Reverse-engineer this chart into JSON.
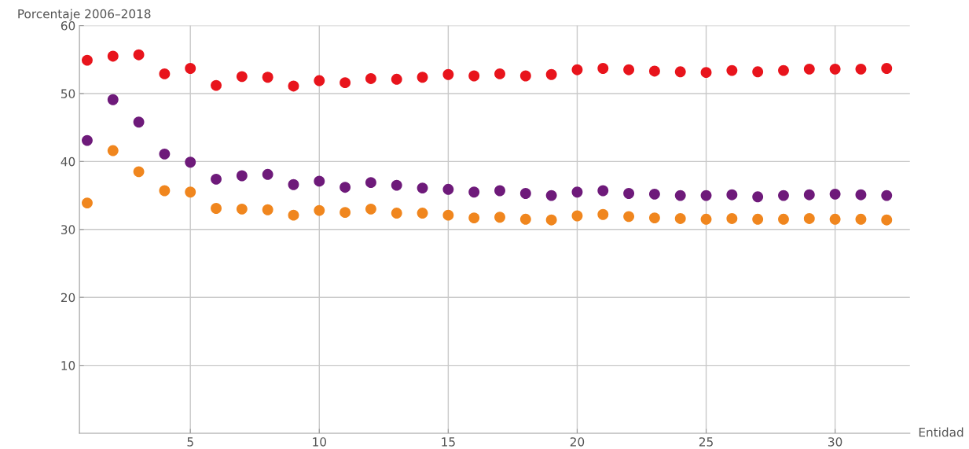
{
  "chart_data": {
    "type": "scatter",
    "xlabel": "Entidad",
    "ylabel": "Porcentaje 2006–2018",
    "x": [
      1,
      2,
      3,
      4,
      5,
      6,
      7,
      8,
      9,
      10,
      11,
      12,
      13,
      14,
      15,
      16,
      17,
      18,
      19,
      20,
      21,
      22,
      23,
      24,
      25,
      26,
      27,
      28,
      29,
      30,
      31,
      32
    ],
    "series": [
      {
        "color": "#e8141c",
        "values": [
          54.9,
          55.5,
          55.7,
          52.9,
          53.7,
          51.2,
          52.5,
          52.4,
          51.1,
          51.9,
          51.6,
          52.2,
          52.1,
          52.4,
          52.8,
          52.6,
          52.9,
          52.6,
          52.8,
          53.5,
          53.7,
          53.5,
          53.3,
          53.2,
          53.1,
          53.4,
          53.2,
          53.4,
          53.6,
          53.6,
          53.6,
          53.7
        ]
      },
      {
        "color": "#6e1a7a",
        "values": [
          43.1,
          49.1,
          45.8,
          41.1,
          39.9,
          37.4,
          37.9,
          38.1,
          36.6,
          37.1,
          36.2,
          36.9,
          36.5,
          36.1,
          35.9,
          35.5,
          35.7,
          35.3,
          35.0,
          35.5,
          35.7,
          35.3,
          35.2,
          35.0,
          35.0,
          35.1,
          34.8,
          35.0,
          35.1,
          35.2,
          35.1,
          35.0
        ]
      },
      {
        "color": "#f0861e",
        "values": [
          33.9,
          41.6,
          38.5,
          35.7,
          35.5,
          33.1,
          33.0,
          32.9,
          32.1,
          32.8,
          32.5,
          33.0,
          32.4,
          32.4,
          32.1,
          31.7,
          31.8,
          31.5,
          31.4,
          32.0,
          32.2,
          31.9,
          31.7,
          31.6,
          31.5,
          31.6,
          31.5,
          31.5,
          31.6,
          31.5,
          31.5,
          31.4
        ]
      }
    ],
    "xlim": [
      0.7,
      32.9
    ],
    "ylim": [
      0,
      60
    ],
    "xticks": [
      5,
      10,
      15,
      20,
      25,
      30
    ],
    "yticks": [
      10,
      20,
      30,
      40,
      50,
      60
    ],
    "grid": true,
    "marker": "circle"
  }
}
